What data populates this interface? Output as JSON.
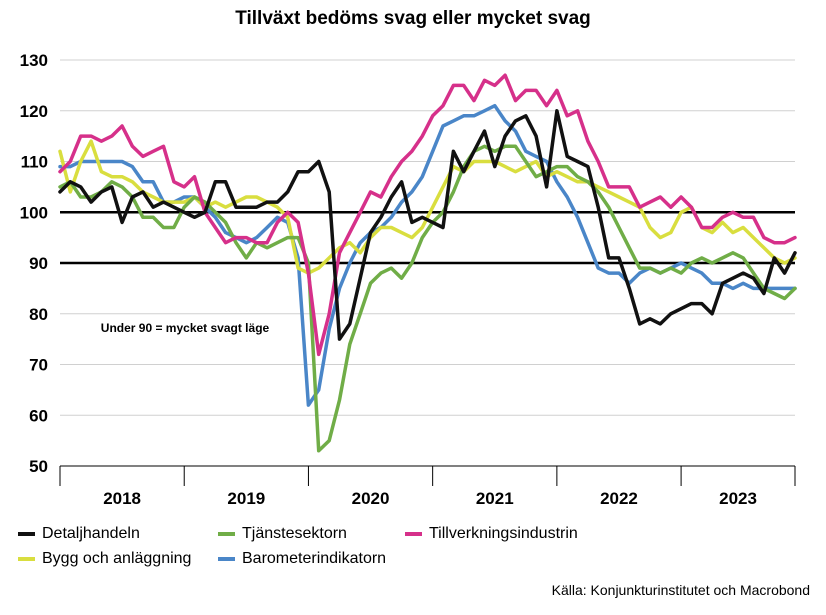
{
  "chart_data": {
    "type": "line",
    "title": "Tillväxt bedöms svag eller mycket svag",
    "source": "Källa: Konjunkturinstitutet och Macrobond",
    "annotation": "Under 90 = mycket svagt läge",
    "ylim": [
      50,
      130
    ],
    "yticks": [
      130,
      120,
      110,
      100,
      90,
      80,
      70,
      60,
      50
    ],
    "reference_lines": [
      100,
      90
    ],
    "xlim": [
      2018.0,
      2023.917
    ],
    "x_tick_labels": [
      "2018",
      "2019",
      "2020",
      "2021",
      "2022",
      "2023"
    ],
    "series": [
      {
        "name": "Detaljhandeln",
        "color": "#111111",
        "x": [
          2018.0,
          2018.083,
          2018.167,
          2018.25,
          2018.333,
          2018.417,
          2018.5,
          2018.583,
          2018.667,
          2018.75,
          2018.833,
          2018.917,
          2019.0,
          2019.083,
          2019.167,
          2019.25,
          2019.333,
          2019.417,
          2019.5,
          2019.583,
          2019.667,
          2019.75,
          2019.833,
          2019.917,
          2020.0,
          2020.083,
          2020.167,
          2020.25,
          2020.333,
          2020.417,
          2020.5,
          2020.583,
          2020.667,
          2020.75,
          2020.833,
          2020.917,
          2021.0,
          2021.083,
          2021.167,
          2021.25,
          2021.333,
          2021.417,
          2021.5,
          2021.583,
          2021.667,
          2021.75,
          2021.833,
          2021.917,
          2022.0,
          2022.083,
          2022.167,
          2022.25,
          2022.333,
          2022.417,
          2022.5,
          2022.583,
          2022.667,
          2022.75,
          2022.833,
          2022.917,
          2023.0,
          2023.083,
          2023.167,
          2023.25,
          2023.333,
          2023.417,
          2023.5,
          2023.583,
          2023.667,
          2023.75,
          2023.833,
          2023.917
        ],
        "values": [
          104,
          106,
          105,
          102,
          104,
          105,
          98,
          103,
          104,
          101,
          102,
          101,
          100,
          99,
          100,
          106,
          106,
          101,
          101,
          101,
          102,
          102,
          104,
          108,
          108,
          110,
          104,
          75,
          78,
          87,
          96,
          99,
          103,
          106,
          98,
          99,
          98,
          97,
          112,
          108,
          112,
          116,
          109,
          115,
          118,
          119,
          115,
          105,
          120,
          111,
          110,
          109,
          101,
          91,
          91,
          85,
          78,
          79,
          78,
          80,
          81,
          82,
          82,
          80,
          86,
          87,
          88,
          87,
          84,
          91,
          88,
          92
        ]
      },
      {
        "name": "Tjänstesektorn",
        "color": "#70ad47",
        "x": [
          2018.0,
          2018.083,
          2018.167,
          2018.25,
          2018.333,
          2018.417,
          2018.5,
          2018.583,
          2018.667,
          2018.75,
          2018.833,
          2018.917,
          2019.0,
          2019.083,
          2019.167,
          2019.25,
          2019.333,
          2019.417,
          2019.5,
          2019.583,
          2019.667,
          2019.75,
          2019.833,
          2019.917,
          2020.0,
          2020.083,
          2020.167,
          2020.25,
          2020.333,
          2020.417,
          2020.5,
          2020.583,
          2020.667,
          2020.75,
          2020.833,
          2020.917,
          2021.0,
          2021.083,
          2021.167,
          2021.25,
          2021.333,
          2021.417,
          2021.5,
          2021.583,
          2021.667,
          2021.75,
          2021.833,
          2021.917,
          2022.0,
          2022.083,
          2022.167,
          2022.25,
          2022.333,
          2022.417,
          2022.5,
          2022.583,
          2022.667,
          2022.75,
          2022.833,
          2022.917,
          2023.0,
          2023.083,
          2023.167,
          2023.25,
          2023.333,
          2023.417,
          2023.5,
          2023.583,
          2023.667,
          2023.75,
          2023.833,
          2023.917
        ],
        "values": [
          105,
          106,
          103,
          103,
          104,
          106,
          105,
          103,
          99,
          99,
          97,
          97,
          101,
          103,
          102,
          100,
          98,
          94,
          91,
          94,
          93,
          94,
          95,
          95,
          90,
          53,
          55,
          63,
          74,
          80,
          86,
          88,
          89,
          87,
          90,
          95,
          98,
          100,
          104,
          109,
          112,
          113,
          112,
          113,
          113,
          110,
          107,
          108,
          109,
          109,
          107,
          106,
          104,
          101,
          97,
          93,
          89,
          89,
          88,
          89,
          88,
          90,
          91,
          90,
          91,
          92,
          91,
          88,
          85,
          84,
          83,
          85
        ]
      },
      {
        "name": "Tillverkningsindustrin",
        "color": "#d6308a",
        "x": [
          2018.0,
          2018.083,
          2018.167,
          2018.25,
          2018.333,
          2018.417,
          2018.5,
          2018.583,
          2018.667,
          2018.75,
          2018.833,
          2018.917,
          2019.0,
          2019.083,
          2019.167,
          2019.25,
          2019.333,
          2019.417,
          2019.5,
          2019.583,
          2019.667,
          2019.75,
          2019.833,
          2019.917,
          2020.0,
          2020.083,
          2020.167,
          2020.25,
          2020.333,
          2020.417,
          2020.5,
          2020.583,
          2020.667,
          2020.75,
          2020.833,
          2020.917,
          2021.0,
          2021.083,
          2021.167,
          2021.25,
          2021.333,
          2021.417,
          2021.5,
          2021.583,
          2021.667,
          2021.75,
          2021.833,
          2021.917,
          2022.0,
          2022.083,
          2022.167,
          2022.25,
          2022.333,
          2022.417,
          2022.5,
          2022.583,
          2022.667,
          2022.75,
          2022.833,
          2022.917,
          2023.0,
          2023.083,
          2023.167,
          2023.25,
          2023.333,
          2023.417,
          2023.5,
          2023.583,
          2023.667,
          2023.75,
          2023.833,
          2023.917
        ],
        "values": [
          108,
          110,
          115,
          115,
          114,
          115,
          117,
          113,
          111,
          112,
          113,
          106,
          105,
          107,
          100,
          97,
          94,
          95,
          95,
          94,
          94,
          98,
          100,
          98,
          88,
          72,
          80,
          92,
          96,
          100,
          104,
          103,
          107,
          110,
          112,
          115,
          119,
          121,
          125,
          125,
          122,
          126,
          125,
          127,
          122,
          124,
          124,
          121,
          124,
          119,
          120,
          114,
          110,
          105,
          105,
          105,
          101,
          102,
          103,
          101,
          103,
          101,
          97,
          97,
          99,
          100,
          99,
          99,
          95,
          94,
          94,
          95
        ]
      },
      {
        "name": "Bygg och anläggning",
        "color": "#d9de3f",
        "x": [
          2018.0,
          2018.083,
          2018.167,
          2018.25,
          2018.333,
          2018.417,
          2018.5,
          2018.583,
          2018.667,
          2018.75,
          2018.833,
          2018.917,
          2019.0,
          2019.083,
          2019.167,
          2019.25,
          2019.333,
          2019.417,
          2019.5,
          2019.583,
          2019.667,
          2019.75,
          2019.833,
          2019.917,
          2020.0,
          2020.083,
          2020.167,
          2020.25,
          2020.333,
          2020.417,
          2020.5,
          2020.583,
          2020.667,
          2020.75,
          2020.833,
          2020.917,
          2021.0,
          2021.083,
          2021.167,
          2021.25,
          2021.333,
          2021.417,
          2021.5,
          2021.583,
          2021.667,
          2021.75,
          2021.833,
          2021.917,
          2022.0,
          2022.083,
          2022.167,
          2022.25,
          2022.333,
          2022.417,
          2022.5,
          2022.583,
          2022.667,
          2022.75,
          2022.833,
          2022.917,
          2023.0,
          2023.083,
          2023.167,
          2023.25,
          2023.333,
          2023.417,
          2023.5,
          2023.583,
          2023.667,
          2023.75,
          2023.833,
          2023.917
        ],
        "values": [
          112,
          104,
          110,
          114,
          108,
          107,
          107,
          106,
          104,
          103,
          102,
          102,
          102,
          103,
          101,
          102,
          101,
          102,
          103,
          103,
          102,
          101,
          99,
          89,
          88,
          89,
          91,
          93,
          94,
          92,
          95,
          97,
          97,
          96,
          95,
          97,
          101,
          105,
          109,
          108,
          110,
          110,
          110,
          109,
          108,
          109,
          110,
          107,
          108,
          107,
          106,
          106,
          105,
          104,
          103,
          102,
          101,
          97,
          95,
          96,
          100,
          101,
          97,
          96,
          98,
          96,
          97,
          95,
          93,
          91,
          90,
          91
        ]
      },
      {
        "name": "Barometerindikatorn",
        "color": "#4a86c8",
        "x": [
          2018.0,
          2018.083,
          2018.167,
          2018.25,
          2018.333,
          2018.417,
          2018.5,
          2018.583,
          2018.667,
          2018.75,
          2018.833,
          2018.917,
          2019.0,
          2019.083,
          2019.167,
          2019.25,
          2019.333,
          2019.417,
          2019.5,
          2019.583,
          2019.667,
          2019.75,
          2019.833,
          2019.917,
          2020.0,
          2020.083,
          2020.167,
          2020.25,
          2020.333,
          2020.417,
          2020.5,
          2020.583,
          2020.667,
          2020.75,
          2020.833,
          2020.917,
          2021.0,
          2021.083,
          2021.167,
          2021.25,
          2021.333,
          2021.417,
          2021.5,
          2021.583,
          2021.667,
          2021.75,
          2021.833,
          2021.917,
          2022.0,
          2022.083,
          2022.167,
          2022.25,
          2022.333,
          2022.417,
          2022.5,
          2022.583,
          2022.667,
          2022.75,
          2022.833,
          2022.917,
          2023.0,
          2023.083,
          2023.167,
          2023.25,
          2023.333,
          2023.417,
          2023.5,
          2023.583,
          2023.667,
          2023.75,
          2023.833,
          2023.917
        ],
        "values": [
          109,
          109,
          110,
          110,
          110,
          110,
          110,
          109,
          106,
          106,
          102,
          102,
          103,
          103,
          101,
          99,
          96,
          95,
          94,
          95,
          97,
          99,
          98,
          91,
          62,
          65,
          77,
          85,
          90,
          94,
          96,
          97,
          99,
          102,
          104,
          107,
          112,
          117,
          118,
          119,
          119,
          120,
          121,
          118,
          116,
          112,
          111,
          110,
          106,
          103,
          99,
          94,
          89,
          88,
          88,
          86,
          88,
          89,
          88,
          89,
          90,
          89,
          88,
          86,
          86,
          85,
          86,
          85,
          85,
          85,
          85,
          85
        ]
      }
    ]
  }
}
